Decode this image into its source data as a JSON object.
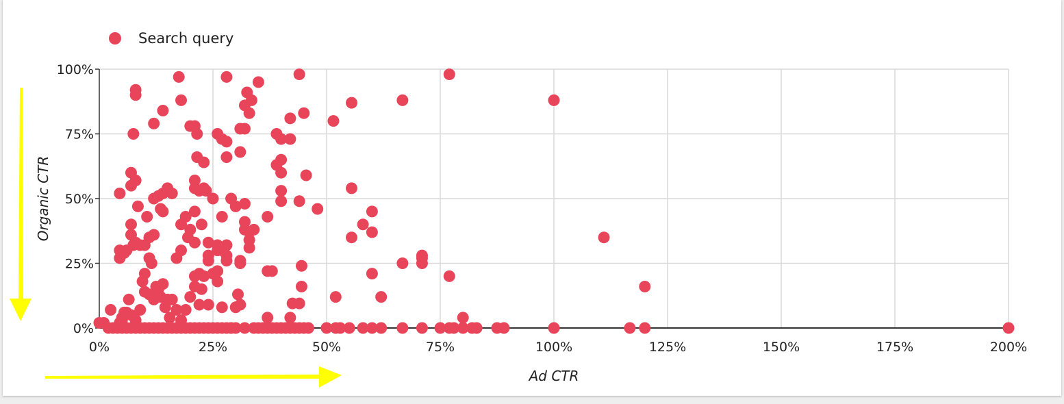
{
  "legend": {
    "label": "Search query"
  },
  "colors": {
    "series": "#e8445a",
    "grid": "#d9d9d9",
    "axis": "#333333",
    "annotation_arrow": "#ffff00"
  },
  "annotations": {
    "arrows": [
      "arrow-down-icon",
      "arrow-right-icon"
    ]
  },
  "chart_data": {
    "type": "scatter",
    "xlabel": "Ad CTR",
    "ylabel": "Organic CTR",
    "xlim": [
      0,
      200
    ],
    "ylim": [
      0,
      100
    ],
    "x_ticks": [
      0,
      25,
      50,
      75,
      100,
      125,
      150,
      175,
      200
    ],
    "y_ticks": [
      0,
      25,
      50,
      75,
      100
    ],
    "x_tick_labels": [
      "0%",
      "25%",
      "50%",
      "75%",
      "100%",
      "125%",
      "150%",
      "175%",
      "200%"
    ],
    "y_tick_labels": [
      "0%",
      "25%",
      "50%",
      "75%",
      "100%"
    ],
    "grid": true,
    "legend_position": "top-left",
    "series": [
      {
        "name": "Search query",
        "points": [
          [
            0,
            2
          ],
          [
            1,
            2
          ],
          [
            2,
            0
          ],
          [
            3,
            0
          ],
          [
            4,
            0
          ],
          [
            5,
            0
          ],
          [
            5,
            3
          ],
          [
            6,
            0
          ],
          [
            6,
            6
          ],
          [
            7,
            0
          ],
          [
            8,
            0
          ],
          [
            9,
            0
          ],
          [
            10,
            0
          ],
          [
            11,
            0
          ],
          [
            12,
            0
          ],
          [
            13,
            0
          ],
          [
            14,
            0
          ],
          [
            15,
            0
          ],
          [
            16,
            0
          ],
          [
            17,
            0
          ],
          [
            18,
            0
          ],
          [
            19,
            0
          ],
          [
            20,
            0
          ],
          [
            21,
            0
          ],
          [
            22,
            0
          ],
          [
            23,
            0
          ],
          [
            24,
            0
          ],
          [
            25,
            0
          ],
          [
            26,
            0
          ],
          [
            27,
            0
          ],
          [
            28,
            0
          ],
          [
            29,
            0
          ],
          [
            30,
            0
          ],
          [
            32,
            0
          ],
          [
            34,
            0
          ],
          [
            35,
            0
          ],
          [
            36,
            0
          ],
          [
            37,
            0
          ],
          [
            38,
            0
          ],
          [
            39,
            0
          ],
          [
            40,
            0
          ],
          [
            41,
            0
          ],
          [
            42,
            0
          ],
          [
            43,
            0
          ],
          [
            44,
            0
          ],
          [
            45,
            0
          ],
          [
            46,
            0
          ],
          [
            50,
            0
          ],
          [
            52,
            0
          ],
          [
            53,
            0
          ],
          [
            55,
            0
          ],
          [
            58,
            0
          ],
          [
            60,
            0
          ],
          [
            62,
            0
          ],
          [
            66.7,
            0
          ],
          [
            71,
            0
          ],
          [
            75,
            0
          ],
          [
            77,
            0
          ],
          [
            78,
            0
          ],
          [
            80,
            0
          ],
          [
            82,
            0
          ],
          [
            83,
            0
          ],
          [
            87.5,
            0
          ],
          [
            89,
            0
          ],
          [
            100,
            0
          ],
          [
            116.7,
            0
          ],
          [
            120,
            0
          ],
          [
            200,
            0
          ],
          [
            2.5,
            7
          ],
          [
            4.5,
            2
          ],
          [
            5,
            4
          ],
          [
            5.5,
            6
          ],
          [
            6.5,
            11
          ],
          [
            7,
            5
          ],
          [
            8,
            3
          ],
          [
            9,
            7
          ],
          [
            10,
            21
          ],
          [
            9.5,
            18
          ],
          [
            10,
            14
          ],
          [
            11,
            13
          ],
          [
            12,
            11
          ],
          [
            12.5,
            16
          ],
          [
            13,
            15
          ],
          [
            14,
            17
          ],
          [
            13.5,
            12
          ],
          [
            14.5,
            8
          ],
          [
            15,
            11
          ],
          [
            16,
            11
          ],
          [
            15.5,
            4
          ],
          [
            17,
            7
          ],
          [
            18,
            3
          ],
          [
            19,
            7
          ],
          [
            20,
            12
          ],
          [
            21,
            16
          ],
          [
            21,
            20
          ],
          [
            22,
            21
          ],
          [
            22.5,
            15
          ],
          [
            22,
            9
          ],
          [
            23,
            20
          ],
          [
            24,
            9
          ],
          [
            25,
            21
          ],
          [
            26,
            22
          ],
          [
            26,
            18
          ],
          [
            27,
            8
          ],
          [
            29,
            0
          ],
          [
            30,
            8
          ],
          [
            30.5,
            13
          ],
          [
            31,
            9
          ],
          [
            37,
            4
          ],
          [
            42,
            4
          ],
          [
            42.5,
            9.5
          ],
          [
            44,
            9.5
          ],
          [
            4.5,
            30
          ],
          [
            4.5,
            27
          ],
          [
            5.5,
            29
          ],
          [
            6,
            30
          ],
          [
            7,
            40
          ],
          [
            7,
            36
          ],
          [
            7.5,
            32
          ],
          [
            8,
            33
          ],
          [
            9,
            32
          ],
          [
            10,
            32
          ],
          [
            11,
            35
          ],
          [
            11,
            27
          ],
          [
            11.5,
            25
          ],
          [
            12,
            36
          ],
          [
            8,
            57
          ],
          [
            7,
            55
          ],
          [
            7,
            60
          ],
          [
            4.5,
            52
          ],
          [
            8.5,
            47
          ],
          [
            10.5,
            43
          ],
          [
            12,
            50
          ],
          [
            13,
            51
          ],
          [
            13.5,
            46
          ],
          [
            14,
            45
          ],
          [
            14,
            52
          ],
          [
            15,
            54
          ],
          [
            16,
            52
          ],
          [
            17,
            27
          ],
          [
            18,
            40
          ],
          [
            18,
            30
          ],
          [
            19,
            43
          ],
          [
            19.5,
            35
          ],
          [
            20,
            38
          ],
          [
            21,
            33
          ],
          [
            21,
            45
          ],
          [
            21,
            54
          ],
          [
            21,
            57
          ],
          [
            22,
            53
          ],
          [
            22.5,
            40
          ],
          [
            23,
            54
          ],
          [
            23.5,
            53
          ],
          [
            24,
            33
          ],
          [
            24,
            28
          ],
          [
            24,
            26
          ],
          [
            25,
            50
          ],
          [
            26,
            30
          ],
          [
            26,
            32
          ],
          [
            27,
            43
          ],
          [
            27,
            30
          ],
          [
            28,
            32
          ],
          [
            28,
            28
          ],
          [
            28,
            26
          ],
          [
            29,
            50
          ],
          [
            30,
            47
          ],
          [
            31,
            25
          ],
          [
            31,
            26
          ],
          [
            32,
            48
          ],
          [
            32,
            41
          ],
          [
            32,
            38
          ],
          [
            33,
            37
          ],
          [
            33,
            31
          ],
          [
            33,
            34
          ],
          [
            34,
            38
          ],
          [
            37,
            43
          ],
          [
            37,
            22
          ],
          [
            38,
            22
          ],
          [
            39,
            63
          ],
          [
            40,
            65
          ],
          [
            40,
            60
          ],
          [
            40,
            53
          ],
          [
            40,
            49
          ],
          [
            44,
            49
          ],
          [
            44.5,
            24
          ],
          [
            44.5,
            16
          ],
          [
            45.5,
            59
          ],
          [
            48,
            46
          ],
          [
            52,
            12
          ],
          [
            55.5,
            35
          ],
          [
            55.5,
            54
          ],
          [
            58,
            40
          ],
          [
            60,
            45
          ],
          [
            60,
            37
          ],
          [
            60,
            21
          ],
          [
            62,
            12
          ],
          [
            66.7,
            25
          ],
          [
            71,
            28
          ],
          [
            71,
            27
          ],
          [
            71,
            25
          ],
          [
            77,
            20
          ],
          [
            80,
            4
          ],
          [
            111,
            35
          ],
          [
            120,
            16
          ],
          [
            7.5,
            75
          ],
          [
            8,
            90
          ],
          [
            8,
            92
          ],
          [
            12,
            79
          ],
          [
            14,
            84
          ],
          [
            17.5,
            97
          ],
          [
            18,
            88
          ],
          [
            20,
            78
          ],
          [
            21,
            78
          ],
          [
            21.5,
            75
          ],
          [
            21.5,
            66
          ],
          [
            23,
            64
          ],
          [
            26,
            75
          ],
          [
            27,
            73
          ],
          [
            28,
            72
          ],
          [
            28,
            97
          ],
          [
            28,
            66
          ],
          [
            31,
            68
          ],
          [
            31,
            77
          ],
          [
            32,
            77
          ],
          [
            32,
            86
          ],
          [
            32.5,
            91
          ],
          [
            33,
            83
          ],
          [
            33.5,
            88
          ],
          [
            35,
            95
          ],
          [
            39,
            75
          ],
          [
            40,
            73
          ],
          [
            42,
            81
          ],
          [
            42,
            73
          ],
          [
            44,
            98
          ],
          [
            45,
            83
          ],
          [
            51.5,
            80
          ],
          [
            55.5,
            87
          ],
          [
            66.7,
            88
          ],
          [
            77,
            98
          ],
          [
            100,
            88
          ]
        ]
      }
    ]
  }
}
